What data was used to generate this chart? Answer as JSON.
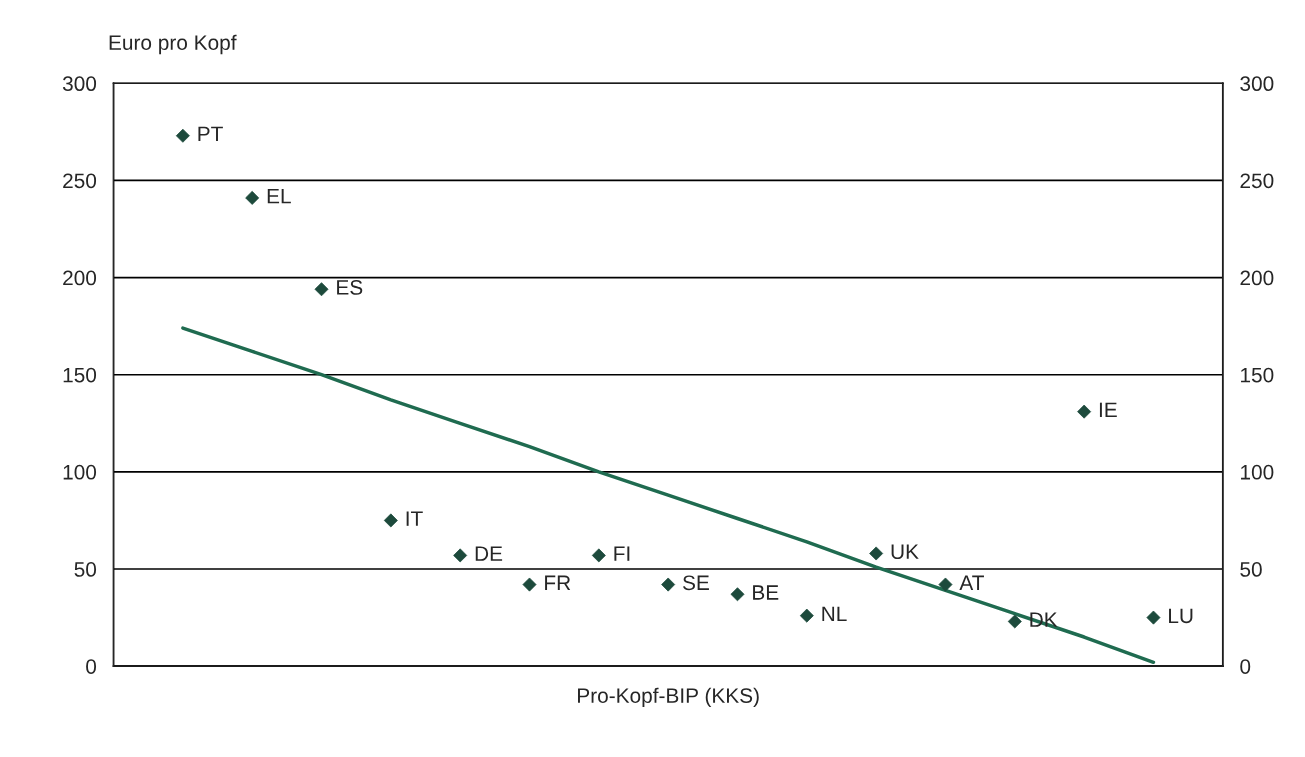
{
  "chart_data": {
    "type": "scatter",
    "xlabel": "Pro-Kopf-BIP (KKS)",
    "ylabel": "Euro pro Kopf",
    "categories": [
      null,
      null,
      null,
      null,
      null,
      null,
      null,
      null,
      null,
      null,
      null,
      null,
      null,
      null,
      null
    ],
    "series": [
      {
        "color": "#1d4a3c",
        "marker": "diamond",
        "values": [
          273,
          241,
          194,
          75,
          57,
          42,
          57,
          42,
          37,
          26,
          58,
          42,
          23,
          131,
          25
        ],
        "value_labels": [
          "PT",
          "EL",
          "ES",
          "IT",
          "DE",
          "FR",
          "FI",
          "SE",
          "BE",
          "NL",
          "UK",
          "AT",
          "DK",
          "IE",
          "LU"
        ]
      },
      {
        "type": "line",
        "color": "#1f6b50",
        "line_style": "solid",
        "values": [
          174,
          162,
          150,
          137,
          125,
          113,
          100,
          88,
          76,
          64,
          51,
          39,
          27,
          15,
          2
        ]
      }
    ],
    "ylim": [
      0,
      300
    ],
    "yticks": [
      0,
      50,
      100,
      150,
      200,
      250,
      300
    ],
    "y2lim": [
      0,
      300
    ],
    "y2ticks": [
      0,
      50,
      100,
      150,
      200,
      250,
      300
    ],
    "grid": "y",
    "legend": false
  }
}
